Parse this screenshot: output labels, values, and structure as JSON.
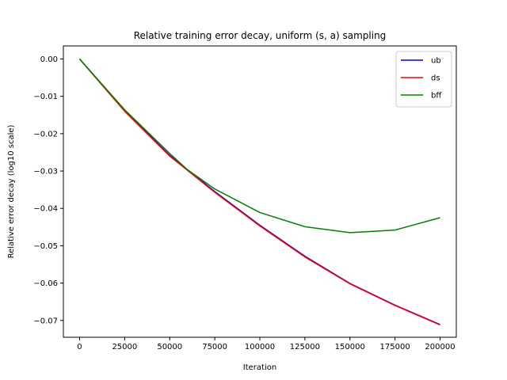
{
  "chart_data": {
    "type": "line",
    "title": "Relative training error decay, uniform (s, a) sampling",
    "xlabel": "Iteration",
    "ylabel": "Relative error decay (log10 scale)",
    "xlim": [
      -9000,
      209000
    ],
    "ylim": [
      -0.0745,
      0.0035
    ],
    "xticks": [
      0,
      25000,
      50000,
      75000,
      100000,
      125000,
      150000,
      175000,
      200000
    ],
    "yticks": [
      0.0,
      -0.01,
      -0.02,
      -0.03,
      -0.04,
      -0.05,
      -0.06,
      -0.07
    ],
    "ytick_labels": [
      "0.00",
      "−0.01",
      "−0.02",
      "−0.03",
      "−0.04",
      "−0.05",
      "−0.06",
      "−0.07"
    ],
    "legend_position": "top-right",
    "grid": false,
    "series": [
      {
        "name": "ub",
        "color": "#0000ff",
        "x": [
          0,
          25000,
          50000,
          75000,
          100000,
          125000,
          150000,
          175000,
          200000
        ],
        "y": [
          0.0,
          -0.0138,
          -0.0258,
          -0.0355,
          -0.0445,
          -0.0528,
          -0.0601,
          -0.0659,
          -0.0711
        ]
      },
      {
        "name": "ds",
        "color": "#ff0000",
        "x": [
          0,
          25000,
          50000,
          75000,
          100000,
          125000,
          150000,
          175000,
          200000
        ],
        "y": [
          0.0,
          -0.014,
          -0.026,
          -0.0357,
          -0.0447,
          -0.053,
          -0.0602,
          -0.066,
          -0.0712
        ]
      },
      {
        "name": "bff",
        "color": "#008000",
        "x": [
          0,
          25000,
          50000,
          60000,
          75000,
          100000,
          125000,
          150000,
          175000,
          200000
        ],
        "y": [
          0.0,
          -0.0136,
          -0.0253,
          -0.0297,
          -0.0348,
          -0.0411,
          -0.0449,
          -0.0465,
          -0.0458,
          -0.0425
        ]
      }
    ]
  }
}
